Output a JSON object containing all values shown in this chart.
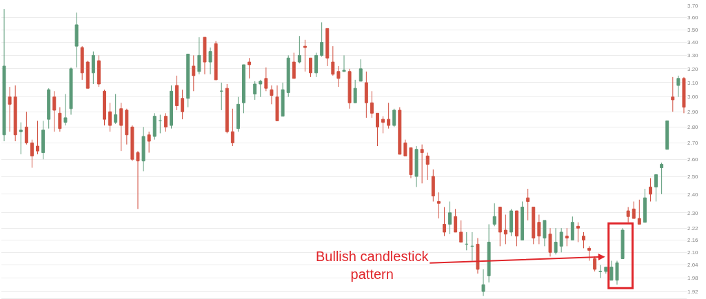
{
  "chart_data": {
    "type": "candlestick",
    "categories": [
      null,
      null,
      null,
      null,
      null,
      null,
      null,
      null,
      null,
      null,
      null,
      null,
      null,
      null,
      null,
      null,
      null,
      null,
      null,
      null,
      null,
      null,
      null,
      null,
      null,
      null,
      null,
      null,
      null,
      null,
      null,
      null,
      null,
      null,
      null,
      null,
      null,
      null,
      null,
      null,
      null,
      null,
      null,
      null,
      null,
      null,
      null,
      null,
      null,
      null,
      null,
      null,
      null,
      null,
      null,
      null,
      null,
      null,
      null,
      null,
      null,
      null,
      null,
      null,
      null,
      null,
      null,
      null,
      null,
      null,
      null,
      null,
      null,
      null,
      null,
      null,
      null,
      null,
      null,
      null,
      null,
      null,
      null,
      null,
      null,
      null,
      null,
      null,
      null,
      null,
      null,
      null,
      null,
      null,
      null,
      null,
      null,
      null,
      null,
      null,
      null,
      null,
      null,
      null,
      null,
      null,
      null,
      null,
      null,
      null,
      null,
      null,
      null,
      null,
      null,
      null,
      null,
      null,
      null,
      null,
      null,
      null,
      null
    ],
    "ohlc": [
      [
        2.75,
        3.67,
        2.71,
        3.22
      ],
      [
        3.0,
        3.07,
        2.77,
        2.95
      ],
      [
        3.0,
        3.08,
        2.71,
        2.75
      ],
      [
        2.77,
        2.83,
        2.63,
        2.78
      ],
      [
        2.8,
        2.9,
        2.69,
        2.7
      ],
      [
        2.7,
        2.72,
        2.55,
        2.62
      ],
      [
        2.68,
        2.84,
        2.63,
        2.65
      ],
      [
        2.64,
        2.84,
        2.6,
        2.78
      ],
      [
        2.85,
        3.06,
        2.79,
        3.05
      ],
      [
        3.0,
        3.04,
        2.77,
        2.91
      ],
      [
        2.89,
        2.93,
        2.77,
        2.79
      ],
      [
        2.83,
        3.02,
        2.81,
        2.86
      ],
      [
        2.92,
        3.21,
        2.88,
        3.2
      ],
      [
        3.37,
        3.64,
        3.21,
        3.54
      ],
      [
        3.36,
        3.37,
        3.12,
        3.17
      ],
      [
        3.25,
        3.26,
        3.06,
        3.06
      ],
      [
        3.17,
        3.33,
        3.09,
        3.3
      ],
      [
        3.26,
        3.3,
        3.07,
        3.09
      ],
      [
        3.04,
        3.05,
        2.81,
        2.85
      ],
      [
        2.9,
        2.96,
        2.77,
        2.81
      ],
      [
        2.83,
        3.02,
        2.82,
        2.88
      ],
      [
        2.92,
        2.96,
        2.65,
        2.81
      ],
      [
        2.91,
        2.92,
        2.69,
        2.75
      ],
      [
        2.8,
        2.81,
        2.59,
        2.6
      ],
      [
        2.64,
        2.65,
        2.32,
        2.59
      ],
      [
        2.59,
        2.8,
        2.53,
        2.74
      ],
      [
        2.75,
        2.77,
        2.64,
        2.71
      ],
      [
        2.74,
        2.89,
        2.72,
        2.87
      ],
      [
        2.84,
        2.88,
        2.76,
        2.84
      ],
      [
        2.87,
        2.89,
        2.77,
        2.8
      ],
      [
        2.81,
        3.08,
        2.79,
        3.04
      ],
      [
        3.08,
        3.15,
        2.91,
        2.94
      ],
      [
        2.99,
        3.05,
        2.85,
        2.9
      ],
      [
        2.99,
        3.31,
        2.93,
        3.31
      ],
      [
        3.22,
        3.3,
        3.04,
        3.15
      ],
      [
        3.18,
        3.44,
        3.16,
        3.3
      ],
      [
        3.44,
        3.44,
        3.16,
        3.25
      ],
      [
        3.25,
        3.36,
        3.16,
        3.33
      ],
      [
        3.39,
        3.41,
        3.12,
        3.12
      ],
      [
        3.04,
        3.1,
        2.91,
        3.04
      ],
      [
        3.06,
        3.09,
        2.76,
        2.77
      ],
      [
        2.77,
        2.92,
        2.68,
        2.7
      ],
      [
        2.79,
        3.0,
        2.77,
        2.95
      ],
      [
        2.96,
        3.23,
        2.89,
        3.23
      ],
      [
        3.25,
        3.28,
        3.13,
        3.23
      ],
      [
        3.02,
        3.11,
        2.98,
        3.09
      ],
      [
        3.09,
        3.12,
        3.0,
        3.11
      ],
      [
        3.13,
        3.21,
        3.04,
        3.06
      ],
      [
        3.05,
        3.08,
        2.95,
        3.01
      ],
      [
        3.0,
        3.08,
        2.84,
        2.84
      ],
      [
        2.87,
        3.1,
        2.87,
        3.05
      ],
      [
        3.03,
        3.3,
        3.0,
        3.28
      ],
      [
        3.25,
        3.32,
        3.13,
        3.13
      ],
      [
        3.25,
        3.45,
        3.24,
        3.3
      ],
      [
        3.37,
        3.42,
        3.18,
        3.36
      ],
      [
        3.28,
        3.28,
        3.14,
        3.17
      ],
      [
        3.17,
        3.32,
        3.14,
        3.3
      ],
      [
        3.3,
        3.56,
        3.29,
        3.4
      ],
      [
        3.51,
        3.51,
        3.22,
        3.28
      ],
      [
        3.25,
        3.37,
        3.15,
        3.16
      ],
      [
        3.18,
        3.22,
        3.07,
        3.13
      ],
      [
        3.18,
        3.3,
        3.18,
        3.19
      ],
      [
        3.18,
        3.2,
        2.92,
        2.96
      ],
      [
        2.96,
        3.12,
        2.96,
        3.06
      ],
      [
        3.11,
        3.27,
        3.11,
        3.2
      ],
      [
        3.1,
        3.18,
        2.86,
        2.96
      ],
      [
        2.96,
        3.04,
        2.86,
        2.89
      ],
      [
        2.89,
        2.89,
        2.68,
        2.8
      ],
      [
        2.85,
        2.87,
        2.76,
        2.83
      ],
      [
        2.85,
        2.96,
        2.79,
        2.81
      ],
      [
        2.81,
        2.92,
        2.8,
        2.91
      ],
      [
        2.91,
        2.93,
        2.63,
        2.63
      ],
      [
        2.7,
        2.72,
        2.62,
        2.62
      ],
      [
        2.67,
        2.67,
        2.49,
        2.51
      ],
      [
        2.5,
        2.68,
        2.44,
        2.66
      ],
      [
        2.66,
        2.69,
        2.46,
        2.64
      ],
      [
        2.62,
        2.64,
        2.48,
        2.57
      ],
      [
        2.5,
        2.54,
        2.36,
        2.39
      ],
      [
        2.36,
        2.41,
        2.27,
        2.35
      ],
      [
        2.24,
        2.33,
        2.18,
        2.2
      ],
      [
        2.24,
        2.36,
        2.19,
        2.3
      ],
      [
        2.28,
        2.32,
        2.2,
        2.2
      ],
      [
        2.2,
        2.26,
        2.15,
        2.15
      ],
      [
        2.14,
        2.2,
        2.11,
        2.14
      ],
      [
        2.13,
        2.2,
        2.06,
        2.13
      ],
      [
        2.14,
        2.17,
        2.0,
        2.02
      ],
      [
        1.92,
        2.02,
        1.9,
        1.95
      ],
      [
        1.99,
        2.24,
        1.96,
        2.15
      ],
      [
        2.24,
        2.35,
        2.23,
        2.28
      ],
      [
        2.33,
        2.33,
        2.13,
        2.2
      ],
      [
        2.21,
        2.29,
        2.14,
        2.19
      ],
      [
        2.2,
        2.32,
        2.18,
        2.31
      ],
      [
        2.31,
        2.31,
        2.13,
        2.18
      ],
      [
        2.16,
        2.36,
        2.16,
        2.33
      ],
      [
        2.38,
        2.43,
        2.26,
        2.36
      ],
      [
        2.33,
        2.33,
        2.14,
        2.17
      ],
      [
        2.25,
        2.29,
        2.14,
        2.18
      ],
      [
        2.17,
        2.26,
        2.13,
        2.26
      ],
      [
        2.19,
        2.22,
        2.08,
        2.1
      ],
      [
        2.1,
        2.22,
        2.09,
        2.15
      ],
      [
        2.13,
        2.22,
        2.1,
        2.2
      ],
      [
        2.18,
        2.22,
        2.13,
        2.17
      ],
      [
        2.16,
        2.28,
        2.16,
        2.25
      ],
      [
        2.23,
        2.25,
        2.15,
        2.22
      ],
      [
        2.18,
        2.2,
        2.12,
        2.16
      ],
      [
        2.12,
        2.13,
        2.06,
        2.11
      ],
      [
        2.07,
        2.08,
        2.01,
        2.02
      ],
      [
        2.01,
        2.04,
        1.98,
        2.01
      ],
      [
        2.01,
        2.03,
        2.0,
        2.03
      ],
      [
        1.97,
        2.06,
        1.97,
        2.03
      ],
      [
        1.97,
        2.06,
        1.95,
        2.05
      ],
      [
        2.07,
        2.22,
        2.07,
        2.21
      ],
      [
        2.31,
        2.33,
        2.25,
        2.28
      ],
      [
        2.32,
        2.36,
        2.27,
        2.27
      ],
      [
        2.27,
        2.37,
        2.24,
        2.24
      ],
      [
        2.25,
        2.43,
        2.25,
        2.38
      ],
      [
        2.44,
        2.49,
        2.36,
        2.4
      ],
      [
        2.44,
        2.51,
        2.36,
        2.51
      ],
      [
        2.55,
        2.58,
        2.4,
        2.57
      ],
      [
        2.66,
        2.84,
        2.66,
        2.84
      ],
      [
        3.0,
        3.14,
        2.9,
        2.98
      ],
      [
        3.08,
        3.15,
        3.0,
        3.13
      ],
      [
        3.13,
        3.14,
        2.89,
        2.93
      ]
    ],
    "colors": [
      "#5b9a78",
      "#d14f3f",
      "#d14f3f",
      "#5b9a78",
      "#d14f3f",
      "#d14f3f",
      "#d14f3f",
      "#5b9a78",
      "#5b9a78",
      "#d14f3f",
      "#d14f3f",
      "#5b9a78",
      "#5b9a78",
      "#5b9a78",
      "#d14f3f",
      "#d14f3f",
      "#5b9a78",
      "#d14f3f",
      "#d14f3f",
      "#d14f3f",
      "#5b9a78",
      "#d14f3f",
      "#d14f3f",
      "#d14f3f",
      "#d14f3f",
      "#5b9a78",
      "#d14f3f",
      "#5b9a78",
      "#5b9a78",
      "#d14f3f",
      "#5b9a78",
      "#d14f3f",
      "#d14f3f",
      "#5b9a78",
      "#d14f3f",
      "#5b9a78",
      "#d14f3f",
      "#5b9a78",
      "#d14f3f",
      "#5b9a78",
      "#d14f3f",
      "#d14f3f",
      "#5b9a78",
      "#5b9a78",
      "#d14f3f",
      "#5b9a78",
      "#5b9a78",
      "#d14f3f",
      "#d14f3f",
      "#d14f3f",
      "#5b9a78",
      "#5b9a78",
      "#d14f3f",
      "#5b9a78",
      "#d14f3f",
      "#d14f3f",
      "#5b9a78",
      "#5b9a78",
      "#d14f3f",
      "#d14f3f",
      "#d14f3f",
      "#5b9a78",
      "#d14f3f",
      "#5b9a78",
      "#5b9a78",
      "#d14f3f",
      "#d14f3f",
      "#d14f3f",
      "#d14f3f",
      "#d14f3f",
      "#5b9a78",
      "#d14f3f",
      "#d14f3f",
      "#d14f3f",
      "#5b9a78",
      "#d14f3f",
      "#d14f3f",
      "#d14f3f",
      "#d14f3f",
      "#d14f3f",
      "#5b9a78",
      "#d14f3f",
      "#d14f3f",
      "#5b9a78",
      "#5b9a78",
      "#d14f3f",
      "#5b9a78",
      "#5b9a78",
      "#5b9a78",
      "#d14f3f",
      "#d14f3f",
      "#5b9a78",
      "#d14f3f",
      "#5b9a78",
      "#d14f3f",
      "#d14f3f",
      "#d14f3f",
      "#5b9a78",
      "#d14f3f",
      "#5b9a78",
      "#5b9a78",
      "#d14f3f",
      "#5b9a78",
      "#d14f3f",
      "#d14f3f",
      "#d14f3f",
      "#d14f3f",
      "#5b9a78",
      "#5b9a78",
      "#5b9a78",
      "#5b9a78",
      "#5b9a78",
      "#d14f3f",
      "#d14f3f",
      "#d14f3f",
      "#5b9a78",
      "#d14f3f",
      "#5b9a78",
      "#5b9a78",
      "#5b9a78",
      "#d14f3f",
      "#5b9a78",
      "#d14f3f"
    ],
    "log": "y",
    "ylim": [
      1.89,
      3.7
    ],
    "yticks": [
      {
        "value": 1.92,
        "label": "1.92"
      },
      {
        "value": 1.98,
        "label": "1.98"
      },
      {
        "value": 2.04,
        "label": "2.04"
      },
      {
        "value": 2.1,
        "label": "2.10"
      },
      {
        "value": 2.16,
        "label": "2.16"
      },
      {
        "value": 2.22,
        "label": "2.22"
      },
      {
        "value": 2.3,
        "label": "2.30"
      },
      {
        "value": 2.4,
        "label": "2.40"
      },
      {
        "value": 2.5,
        "label": "2.50"
      },
      {
        "value": 2.6,
        "label": "2.60"
      },
      {
        "value": 2.7,
        "label": "2.70"
      },
      {
        "value": 2.8,
        "label": "2.80"
      },
      {
        "value": 2.9,
        "label": "2.90"
      },
      {
        "value": 3,
        "label": "3.00"
      },
      {
        "value": 3.1,
        "label": "3.10"
      },
      {
        "value": 3.2,
        "label": "3.20"
      },
      {
        "value": 3.3,
        "label": "3.30"
      },
      {
        "value": 3.4,
        "label": "3.40"
      },
      {
        "value": 3.5,
        "label": "3.50"
      },
      {
        "value": 3.6,
        "label": "3.60"
      },
      {
        "value": 3.7,
        "label": "3.70"
      }
    ],
    "grid": "y",
    "tick_labels": "y",
    "annotations": [
      "Bullish candlestick\npattern"
    ]
  }
}
